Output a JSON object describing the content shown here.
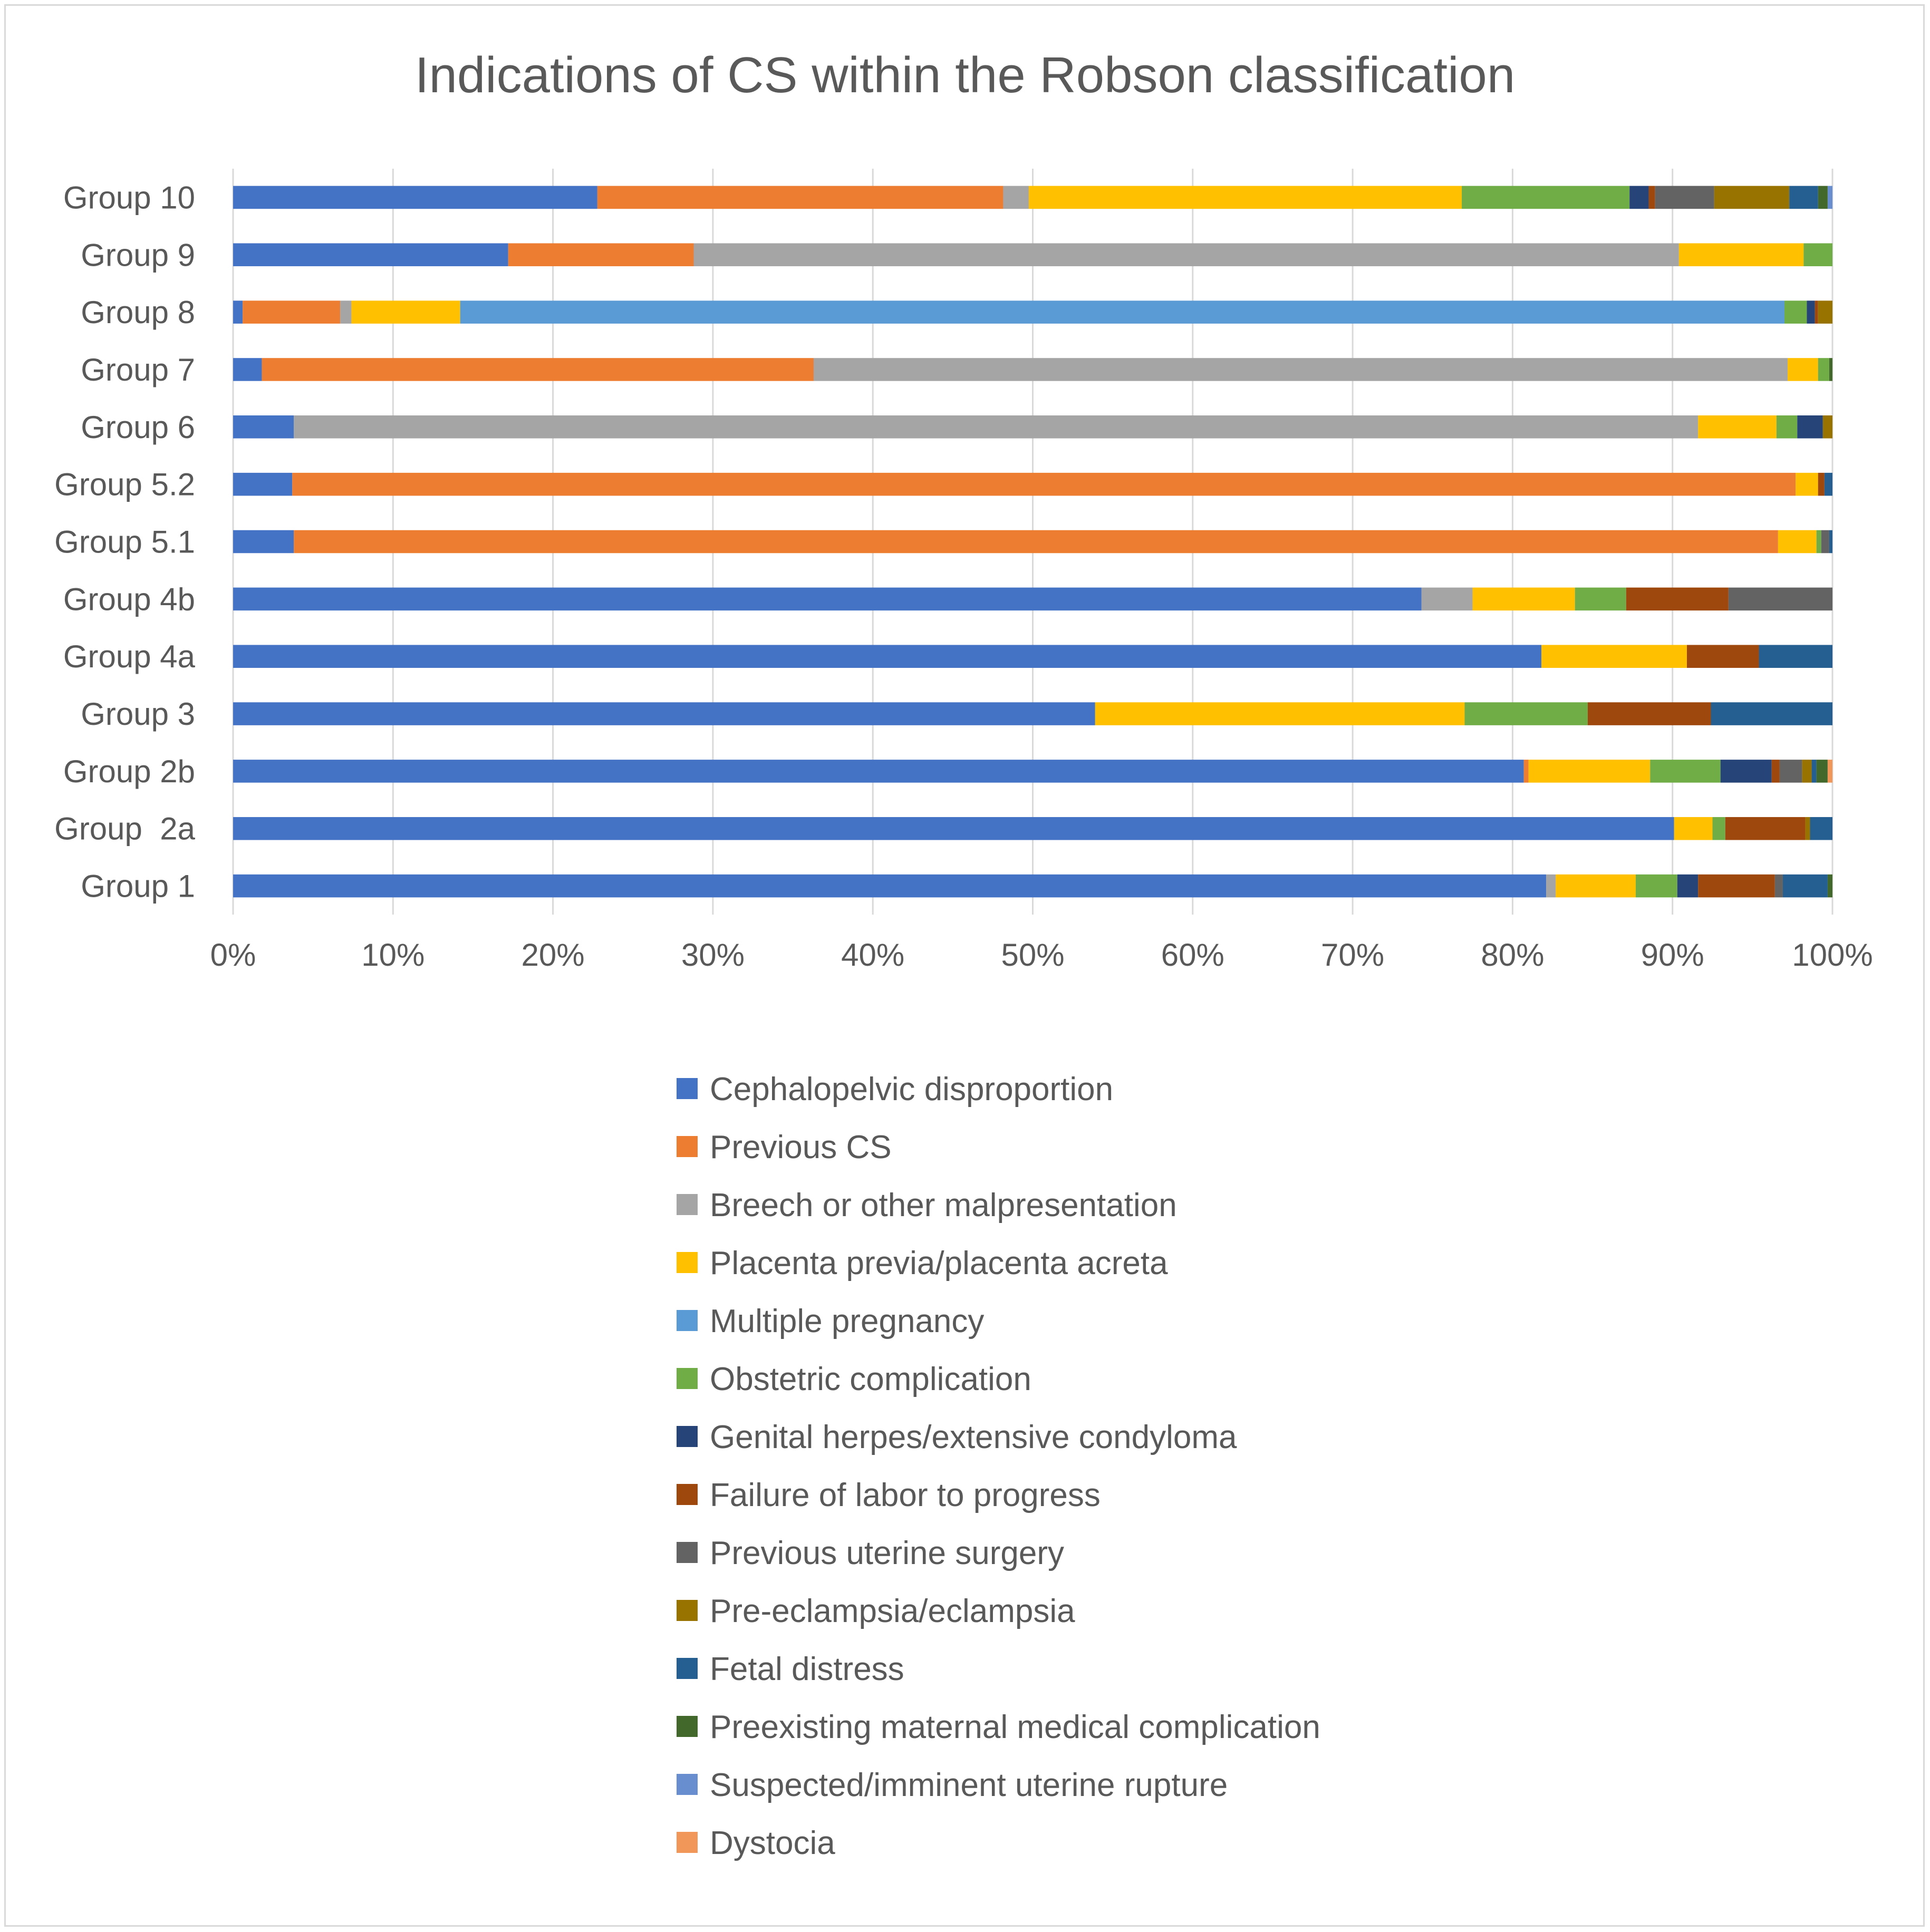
{
  "chart_data": {
    "type": "bar",
    "orientation": "horizontal",
    "stacked": "100%",
    "title": "Indications of CS within the Robson classification",
    "xlabel": "",
    "ylabel": "",
    "xlim": [
      0,
      100
    ],
    "x_ticks": [
      "0%",
      "10%",
      "20%",
      "30%",
      "40%",
      "50%",
      "60%",
      "70%",
      "80%",
      "90%",
      "100%"
    ],
    "grid": "vertical",
    "legend_position": "bottom",
    "categories": [
      "Group 10",
      "Group 9",
      "Group 8",
      "Group 7",
      "Group 6",
      "Group 5.2",
      "Group 5.1",
      "Group 4b",
      "Group 4a",
      "Group 3",
      "Group 2b",
      "Group  2a",
      "Group 1"
    ],
    "series": [
      {
        "name": "Cephalopelvic disproportion",
        "color": "#4472C4",
        "values": [
          22.8,
          17.2,
          0.6,
          1.8,
          3.8,
          3.7,
          3.8,
          74.3,
          81.8,
          53.9,
          80.7,
          90.1,
          82.1
        ]
      },
      {
        "name": "Previous CS",
        "color": "#ED7D31",
        "values": [
          25.4,
          11.6,
          6.1,
          34.5,
          0,
          94.0,
          92.8,
          0,
          0,
          0,
          0.3,
          0,
          0
        ]
      },
      {
        "name": "Breech or other malpresentation",
        "color": "#A5A5A5",
        "values": [
          1.6,
          61.6,
          0.7,
          60.9,
          87.8,
          0,
          0,
          3.2,
          0,
          0,
          0,
          0,
          0.6
        ]
      },
      {
        "name": "Placenta previa/placenta acreta",
        "color": "#FFC000",
        "values": [
          27.1,
          7.8,
          6.8,
          1.9,
          4.9,
          1.4,
          2.4,
          6.4,
          9.1,
          23.1,
          7.6,
          2.4,
          5.0
        ]
      },
      {
        "name": "Multiple pregnancy",
        "color": "#5B9BD5",
        "values": [
          0,
          0,
          82.8,
          0,
          0,
          0,
          0,
          0,
          0,
          0,
          0,
          0,
          0
        ]
      },
      {
        "name": "Obstetric complication",
        "color": "#70AD47",
        "values": [
          10.5,
          1.8,
          1.4,
          0.7,
          1.3,
          0,
          0.3,
          3.2,
          0,
          7.7,
          4.4,
          0.8,
          2.6
        ]
      },
      {
        "name": "Genital herpes/extensive condyloma",
        "color": "#264478",
        "values": [
          1.2,
          0,
          0.5,
          0,
          1.6,
          0,
          0,
          0,
          0,
          0,
          3.2,
          0,
          1.3
        ]
      },
      {
        "name": "Failure of labor to progress",
        "color": "#9E480E",
        "values": [
          0.4,
          0,
          0.2,
          0,
          0,
          0.4,
          0,
          6.4,
          4.5,
          7.7,
          0.5,
          5.0,
          4.8
        ]
      },
      {
        "name": "Previous uterine surgery",
        "color": "#636363",
        "values": [
          3.7,
          0,
          0,
          0,
          0,
          0,
          0.5,
          6.5,
          0,
          0,
          1.4,
          0,
          0.5
        ]
      },
      {
        "name": "Pre-eclampsia/eclampsia",
        "color": "#997300",
        "values": [
          4.7,
          0,
          0.9,
          0,
          0.6,
          0,
          0,
          0,
          0,
          0,
          0.6,
          0.3,
          0
        ]
      },
      {
        "name": "Fetal distress",
        "color": "#255E91",
        "values": [
          1.8,
          0,
          0,
          0,
          0,
          0.5,
          0.2,
          0,
          4.6,
          7.6,
          0.3,
          1.4,
          2.8
        ]
      },
      {
        "name": "Preexisting maternal medical complication",
        "color": "#43682B",
        "values": [
          0.6,
          0,
          0,
          0.2,
          0,
          0,
          0,
          0,
          0,
          0,
          0.7,
          0,
          0.3
        ]
      },
      {
        "name": "Suspected/imminent uterine rupture",
        "color": "#698ED0",
        "values": [
          0.3,
          0,
          0,
          0,
          0,
          0,
          0,
          0,
          0,
          0,
          0,
          0,
          0
        ]
      },
      {
        "name": "Dystocia",
        "color": "#F1975A",
        "values": [
          0,
          0,
          0,
          0,
          0,
          0,
          0,
          0,
          0,
          0,
          0.3,
          0,
          0
        ]
      }
    ]
  }
}
